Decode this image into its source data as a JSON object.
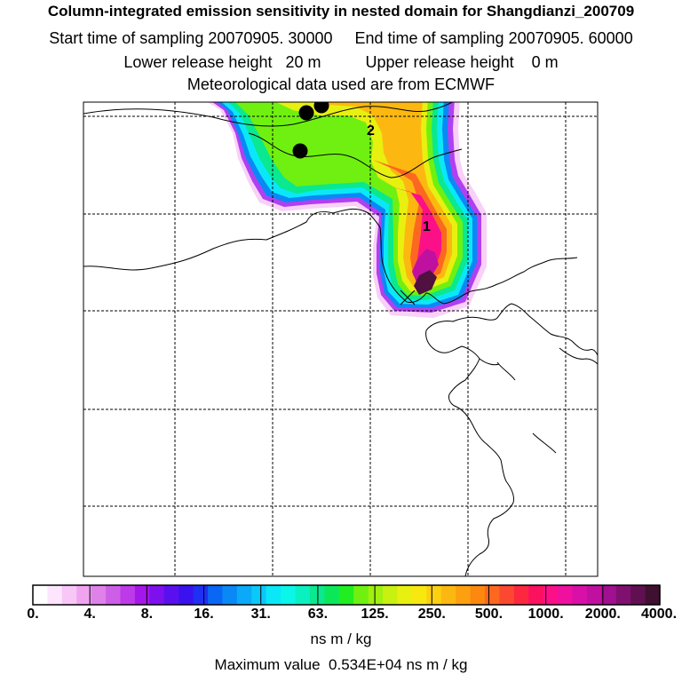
{
  "header": {
    "title": "Column-integrated emission sensitivity in nested domain for Shangdianzi_200709",
    "line2": "Start time of sampling 20070905. 30000     End time of sampling 20070905. 60000",
    "line3": "Lower release height   20 m          Upper release height    0 m",
    "line4": "Meteorological data used are from ECMWF"
  },
  "map": {
    "markers": {
      "cluster_1": "1",
      "cluster_2": "2"
    },
    "gridlines": "dashed"
  },
  "colorbar": {
    "labels": [
      "0.",
      "4.",
      "8.",
      "16.",
      "31.",
      "63.",
      "125.",
      "250.",
      "500.",
      "1000.",
      "2000.",
      "4000."
    ],
    "colors": [
      "#ffffff",
      "#fde6fd",
      "#f8c7f8",
      "#f0a4f0",
      "#de82ea",
      "#cd5ee8",
      "#bd3ae8",
      "#a417ea",
      "#7d10ec",
      "#5a10ee",
      "#3a12f0",
      "#1e30f2",
      "#0a66f4",
      "#0a88f6",
      "#0aaaf8",
      "#0ac8fa",
      "#0ae8f8",
      "#0af6e8",
      "#0af0c0",
      "#0ae890",
      "#0ae85a",
      "#20ee20",
      "#70f010",
      "#a0f010",
      "#c8f010",
      "#e8f010",
      "#f8e810",
      "#fcd010",
      "#fcb810",
      "#fca010",
      "#fc8810",
      "#fc6820",
      "#fc4830",
      "#fc2840",
      "#fc1060",
      "#fc1088",
      "#f010a0",
      "#d810a8",
      "#c010a0",
      "#a01090",
      "#801070",
      "#601050",
      "#401030"
    ],
    "units": "ns m / kg"
  },
  "footer": {
    "max_value": "Maximum value  0.534E+04 ns m / kg"
  }
}
